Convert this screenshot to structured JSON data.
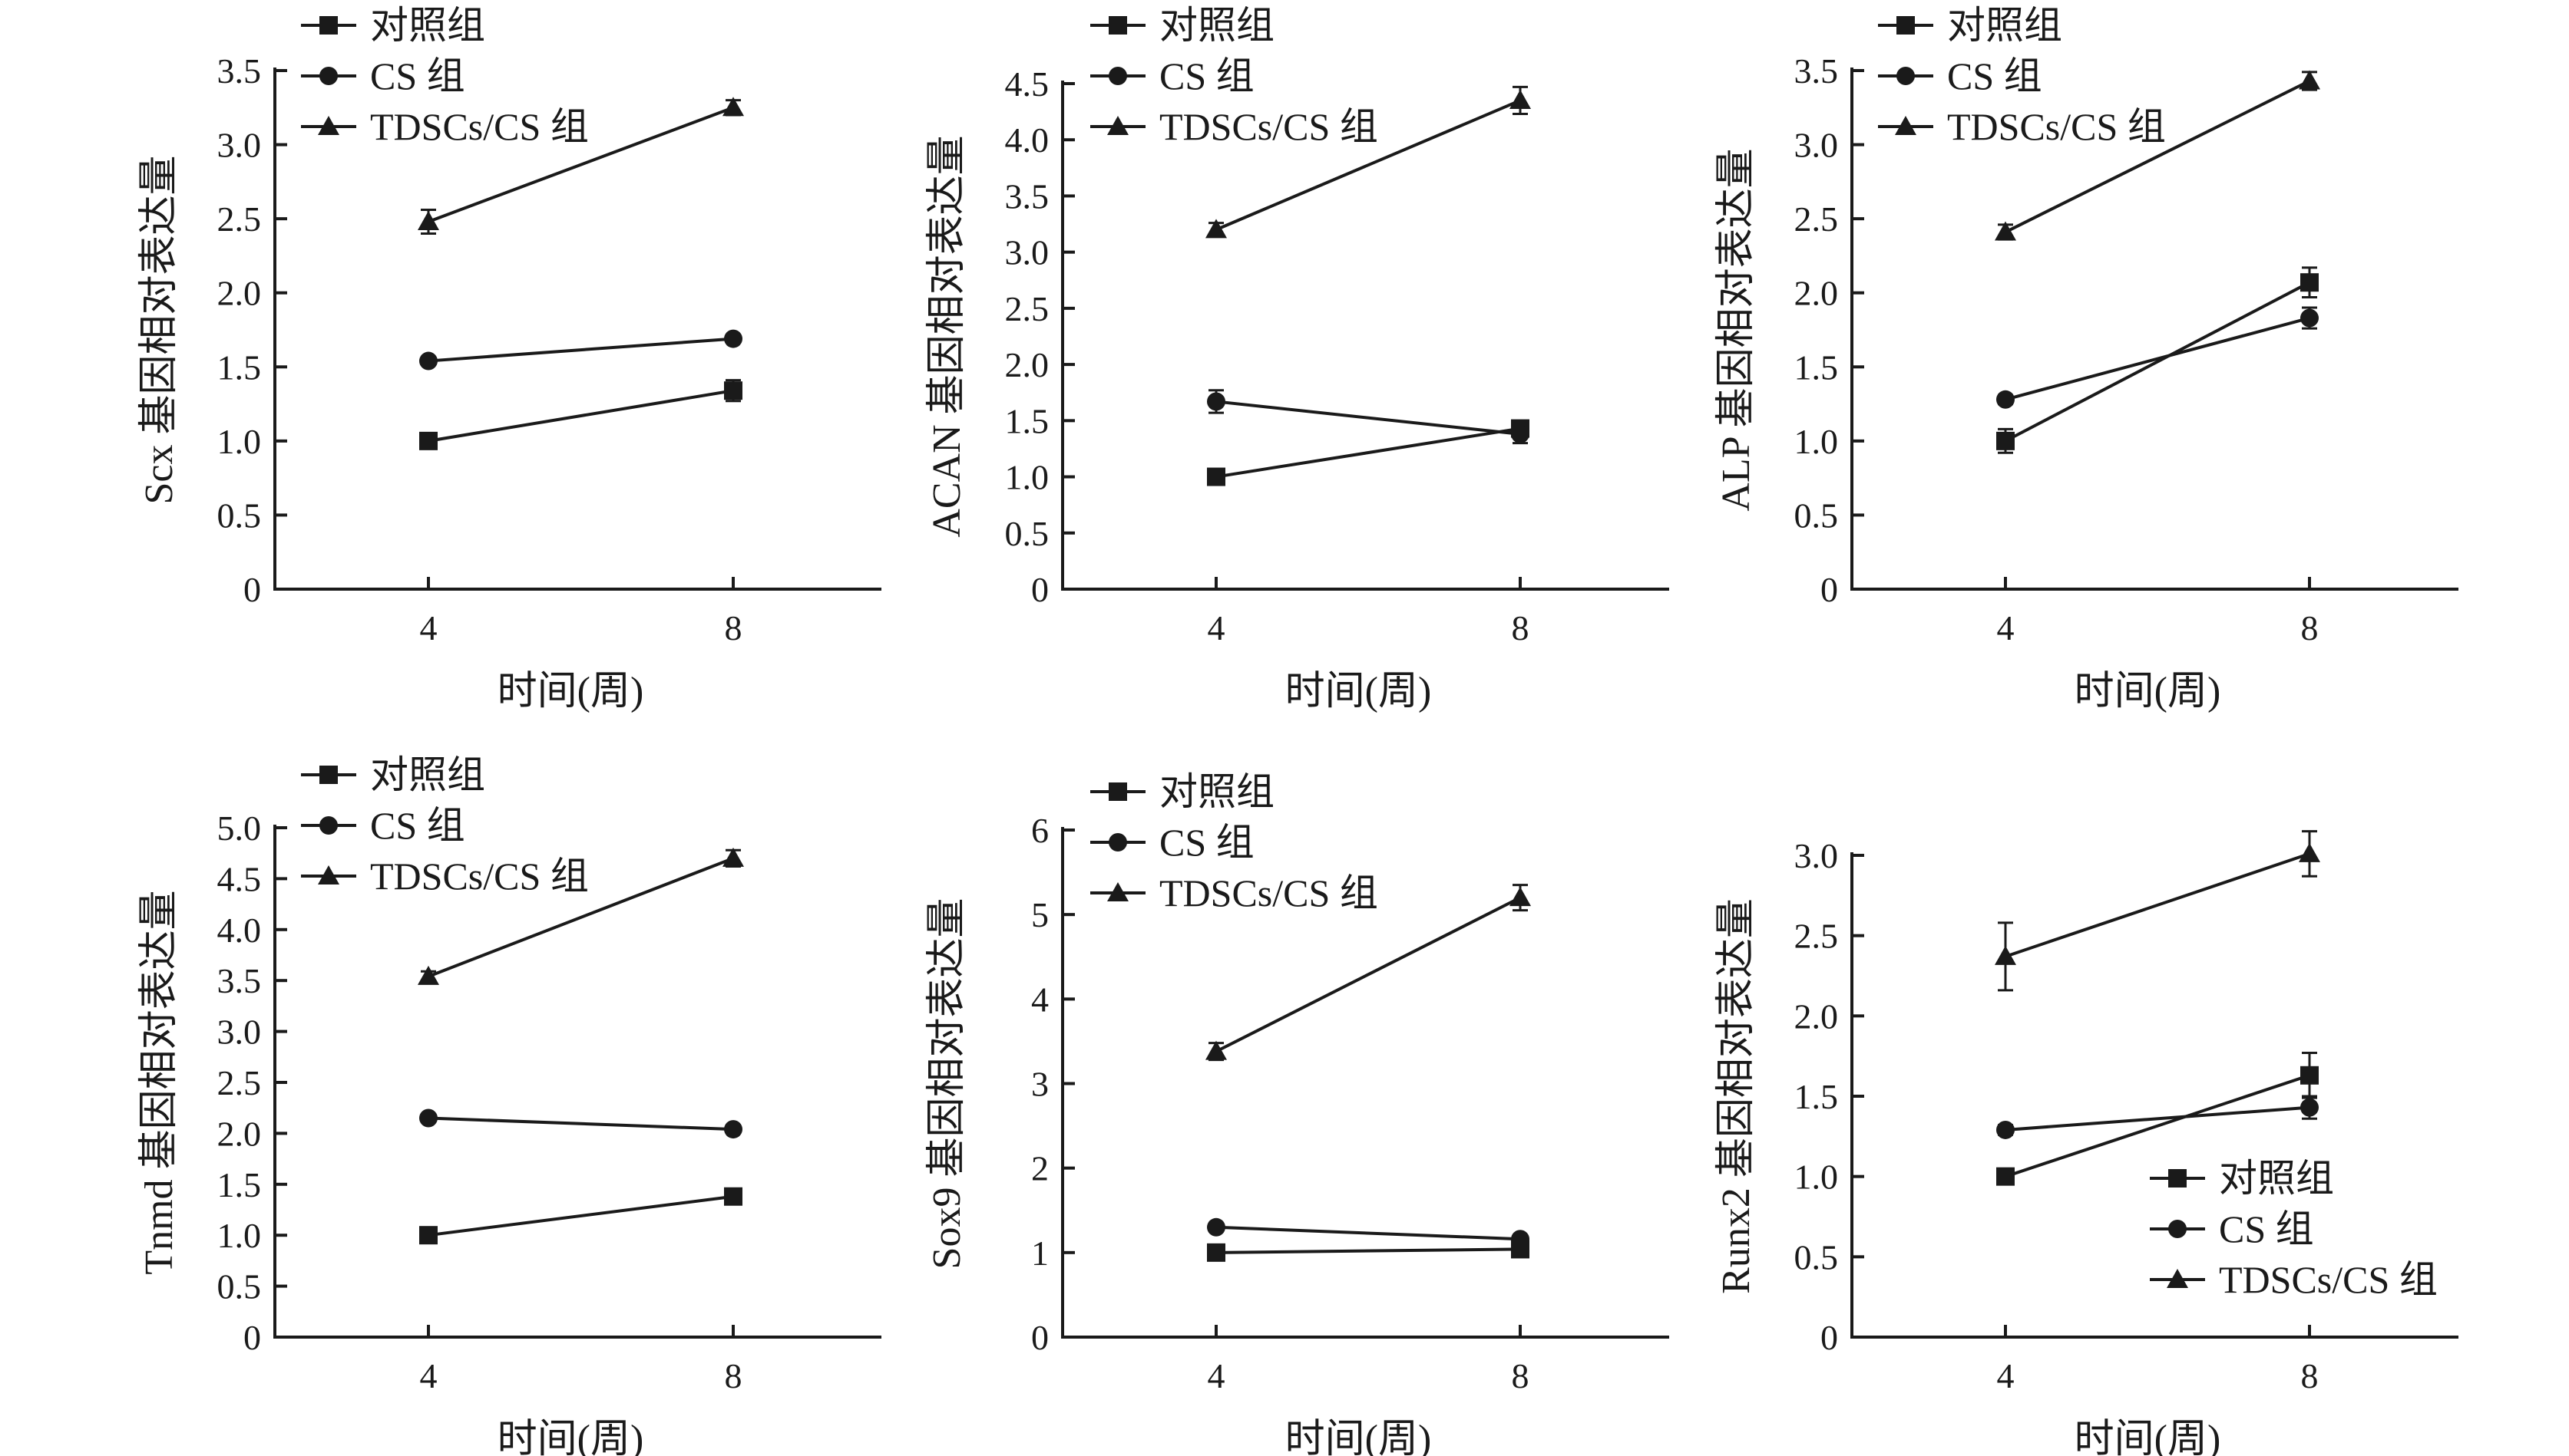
{
  "chart_data": [
    {
      "type": "line",
      "title": "",
      "xlabel": "时间(周)",
      "ylabel": "Scx 基因相对表达量",
      "categories": [
        "4",
        "8"
      ],
      "ylim": [
        0,
        3.5
      ],
      "yticks": [
        "0",
        "0.5",
        "1.0",
        "1.5",
        "2.0",
        "2.5",
        "3.0",
        "3.5"
      ],
      "legend_position": "top-left",
      "series": [
        {
          "name": "对照组",
          "marker": "square",
          "values": [
            1.0,
            1.34
          ],
          "errors": [
            0.03,
            0.07
          ]
        },
        {
          "name": "CS 组",
          "marker": "circle",
          "values": [
            1.54,
            1.69
          ],
          "errors": [
            0.02,
            0.02
          ]
        },
        {
          "name": "TDSCs/CS 组",
          "marker": "triangle",
          "values": [
            2.48,
            3.25
          ],
          "errors": [
            0.08,
            0.05
          ]
        }
      ]
    },
    {
      "type": "line",
      "title": "",
      "xlabel": "时间(周)",
      "ylabel": "ACAN 基因相对表达量",
      "categories": [
        "4",
        "8"
      ],
      "ylim": [
        0,
        4.5
      ],
      "yticks": [
        "0",
        "0.5",
        "1.0",
        "1.5",
        "2.0",
        "2.5",
        "3.0",
        "3.5",
        "4.0",
        "4.5"
      ],
      "legend_position": "top-left",
      "series": [
        {
          "name": "对照组",
          "marker": "square",
          "values": [
            1.0,
            1.43
          ],
          "errors": [
            0.02,
            0.03
          ]
        },
        {
          "name": "CS 组",
          "marker": "circle",
          "values": [
            1.67,
            1.38
          ],
          "errors": [
            0.1,
            0.08
          ]
        },
        {
          "name": "TDSCs/CS 组",
          "marker": "triangle",
          "values": [
            3.2,
            4.35
          ],
          "errors": [
            0.06,
            0.12
          ]
        }
      ]
    },
    {
      "type": "line",
      "title": "",
      "xlabel": "时间(周)",
      "ylabel": "ALP 基因相对表达量",
      "categories": [
        "4",
        "8"
      ],
      "ylim": [
        0,
        3.5
      ],
      "yticks": [
        "0",
        "0.5",
        "1.0",
        "1.5",
        "2.0",
        "2.5",
        "3.0",
        "3.5"
      ],
      "legend_position": "top-left",
      "series": [
        {
          "name": "对照组",
          "marker": "square",
          "values": [
            1.0,
            2.07
          ],
          "errors": [
            0.08,
            0.1
          ]
        },
        {
          "name": "CS 组",
          "marker": "circle",
          "values": [
            1.28,
            1.83
          ],
          "errors": [
            0.03,
            0.07
          ]
        },
        {
          "name": "TDSCs/CS 组",
          "marker": "triangle",
          "values": [
            2.41,
            3.43
          ],
          "errors": [
            0.05,
            0.06
          ]
        }
      ]
    },
    {
      "type": "line",
      "title": "",
      "xlabel": "时间(周)",
      "ylabel": "Tnmd 基因相对表达量",
      "categories": [
        "4",
        "8"
      ],
      "ylim": [
        0,
        5.0
      ],
      "yticks": [
        "0",
        "0.5",
        "1.0",
        "1.5",
        "2.0",
        "2.5",
        "3.0",
        "3.5",
        "4.0",
        "4.5",
        "5.0"
      ],
      "legend_position": "top-left",
      "series": [
        {
          "name": "对照组",
          "marker": "square",
          "values": [
            1.0,
            1.38
          ],
          "errors": [
            0.02,
            0.03
          ]
        },
        {
          "name": "CS 组",
          "marker": "circle",
          "values": [
            2.15,
            2.04
          ],
          "errors": [
            0.02,
            0.04
          ]
        },
        {
          "name": "TDSCs/CS 组",
          "marker": "triangle",
          "values": [
            3.54,
            4.7
          ],
          "errors": [
            0.05,
            0.08
          ]
        }
      ]
    },
    {
      "type": "line",
      "title": "",
      "xlabel": "时间(周)",
      "ylabel": "Sox9 基因相对表达量",
      "categories": [
        "4",
        "8"
      ],
      "ylim": [
        0,
        6
      ],
      "yticks": [
        "0",
        "1",
        "2",
        "3",
        "4",
        "5",
        "6"
      ],
      "legend_position": "top-left",
      "series": [
        {
          "name": "对照组",
          "marker": "square",
          "values": [
            1.0,
            1.04
          ],
          "errors": [
            0.02,
            0.03
          ]
        },
        {
          "name": "CS 组",
          "marker": "circle",
          "values": [
            1.3,
            1.16
          ],
          "errors": [
            0.03,
            0.04
          ]
        },
        {
          "name": "TDSCs/CS 组",
          "marker": "triangle",
          "values": [
            3.38,
            5.2
          ],
          "errors": [
            0.1,
            0.15
          ]
        }
      ]
    },
    {
      "type": "line",
      "title": "",
      "xlabel": "时间(周)",
      "ylabel": "Runx2 基因相对表达量",
      "categories": [
        "4",
        "8"
      ],
      "ylim": [
        0,
        3.0
      ],
      "yticks": [
        "0",
        "0.5",
        "1.0",
        "1.5",
        "2.0",
        "2.5",
        "3.0"
      ],
      "legend_position": "bottom-right",
      "series": [
        {
          "name": "对照组",
          "marker": "square",
          "values": [
            1.0,
            1.63
          ],
          "errors": [
            0.02,
            0.14
          ]
        },
        {
          "name": "CS 组",
          "marker": "circle",
          "values": [
            1.29,
            1.43
          ],
          "errors": [
            0.03,
            0.07
          ]
        },
        {
          "name": "TDSCs/CS 组",
          "marker": "triangle",
          "values": [
            2.37,
            3.01
          ],
          "errors": [
            0.21,
            0.14
          ]
        }
      ]
    }
  ]
}
